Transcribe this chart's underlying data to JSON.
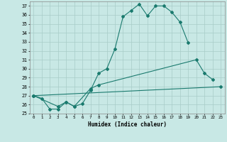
{
  "background_color": "#c8e8e5",
  "line_color": "#1a7a6e",
  "grid_color": "#a8ccc8",
  "xlabel": "Humidex (Indice chaleur)",
  "xlim": [
    -0.5,
    23.5
  ],
  "ylim": [
    25,
    37.5
  ],
  "yticks": [
    25,
    26,
    27,
    28,
    29,
    30,
    31,
    32,
    33,
    34,
    35,
    36,
    37
  ],
  "xticks": [
    0,
    1,
    2,
    3,
    4,
    5,
    6,
    7,
    8,
    9,
    10,
    11,
    12,
    13,
    14,
    15,
    16,
    17,
    18,
    19,
    20,
    21,
    22,
    23
  ],
  "curve1_x": [
    0,
    1,
    2,
    3,
    4,
    5,
    6,
    7,
    8,
    9,
    10,
    11,
    12,
    13,
    14,
    15,
    16,
    17,
    18,
    19
  ],
  "curve1_y": [
    27.0,
    26.7,
    25.5,
    25.5,
    26.3,
    25.8,
    26.1,
    27.6,
    29.5,
    30.0,
    32.2,
    35.8,
    36.5,
    37.2,
    35.9,
    37.0,
    37.0,
    36.3,
    35.2,
    32.9
  ],
  "curve2_x": [
    0,
    3,
    4,
    5,
    7,
    8,
    20,
    21,
    22
  ],
  "curve2_y": [
    27.0,
    25.8,
    26.3,
    25.8,
    27.8,
    28.2,
    31.0,
    29.5,
    28.8
  ],
  "curve3_x": [
    0,
    23
  ],
  "curve3_y": [
    27.0,
    28.0
  ]
}
